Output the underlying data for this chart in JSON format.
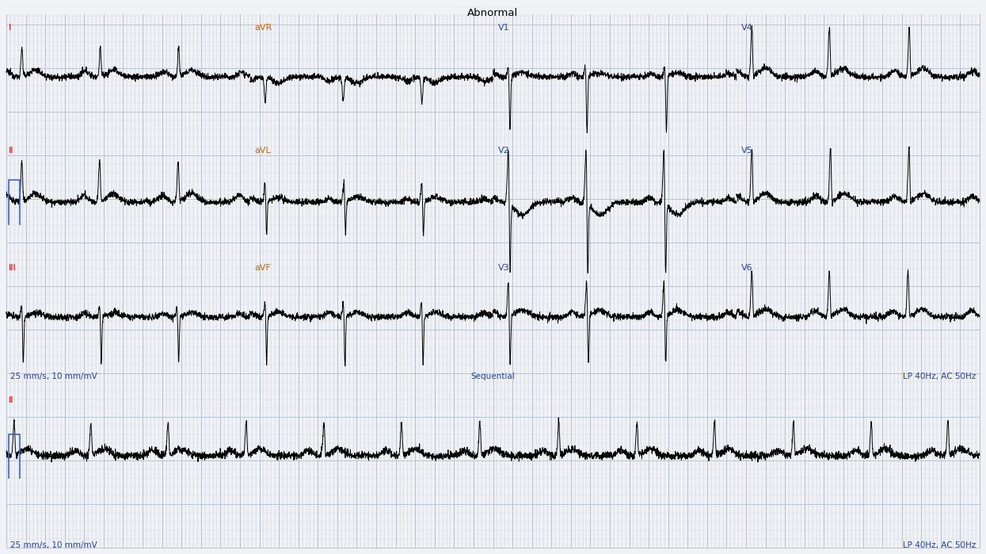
{
  "title": "Abnormal",
  "title_color": "#000000",
  "title_fontsize": 10,
  "background_color": "#f0f2f5",
  "grid_major_color": "#b8c4d4",
  "grid_minor_color": "#d8dde8",
  "ecg_color": "#000000",
  "label_color_I": "#cc0000",
  "label_color_II": "#cc0000",
  "label_color_III": "#cc0000",
  "label_color_aVR": "#cc6600",
  "label_color_aVL": "#cc6600",
  "label_color_aVF": "#cc6600",
  "label_color_V": "#2244aa",
  "label_color_bottom": "#cc0000",
  "footer_color": "#2244aa",
  "footer_left": "25 mm/s, 10 mm/mV",
  "footer_center": "Sequential",
  "footer_right": "LP 40Hz, AC 50Hz",
  "cal_color": "#3366cc",
  "fig_width": 12.45,
  "fig_height": 6.99,
  "dpi": 100
}
